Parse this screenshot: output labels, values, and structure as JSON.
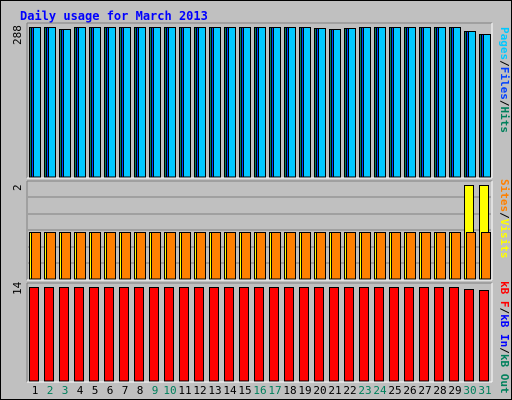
{
  "title": "Daily usage for March 2013",
  "colors": {
    "hits": "#00805c",
    "files": "#0040ff",
    "pages": "#00c8ff",
    "visits": "#ffff00",
    "sites": "#ff8000",
    "kb_in": "#0000ff",
    "kb_out": "#00805c",
    "kb_f": "#ff0000",
    "weekend_label": "#00805c",
    "weekday_label": "#000000"
  },
  "legend": {
    "top": [
      "Pages",
      "Files",
      "Hits"
    ],
    "middle": [
      "Sites",
      "Visits"
    ],
    "bottom": [
      "kB F",
      "kB In",
      "kB Out"
    ]
  },
  "chart_data": [
    {
      "type": "bar",
      "panel": "top",
      "ymax_label": "288",
      "ylim": [
        0,
        288
      ],
      "categories": [
        "1",
        "2",
        "3",
        "4",
        "5",
        "6",
        "7",
        "8",
        "9",
        "10",
        "11",
        "12",
        "13",
        "14",
        "15",
        "16",
        "17",
        "18",
        "19",
        "20",
        "21",
        "22",
        "23",
        "24",
        "25",
        "26",
        "27",
        "28",
        "29",
        "30",
        "31"
      ],
      "weekend_days": [
        "2",
        "3",
        "9",
        "10",
        "16",
        "17",
        "23",
        "24",
        "30",
        "31"
      ],
      "series": [
        {
          "name": "Hits",
          "values": [
            288,
            288,
            285,
            288,
            288,
            288,
            288,
            288,
            288,
            288,
            288,
            288,
            288,
            288,
            288,
            288,
            288,
            288,
            288,
            286,
            285,
            286,
            288,
            288,
            288,
            288,
            288,
            288,
            288,
            281,
            275
          ]
        },
        {
          "name": "Files",
          "values": [
            288,
            288,
            285,
            288,
            288,
            288,
            288,
            288,
            288,
            288,
            288,
            288,
            288,
            288,
            288,
            288,
            288,
            288,
            288,
            286,
            285,
            286,
            288,
            288,
            288,
            288,
            288,
            288,
            288,
            281,
            275
          ]
        },
        {
          "name": "Pages",
          "values": [
            288,
            288,
            285,
            288,
            288,
            288,
            288,
            288,
            288,
            288,
            288,
            288,
            288,
            288,
            288,
            288,
            288,
            288,
            288,
            286,
            285,
            286,
            288,
            288,
            288,
            288,
            288,
            288,
            288,
            281,
            275
          ]
        }
      ]
    },
    {
      "type": "bar",
      "panel": "middle",
      "ymax_label": "2",
      "ylim": [
        0,
        2
      ],
      "categories": [
        "1",
        "2",
        "3",
        "4",
        "5",
        "6",
        "7",
        "8",
        "9",
        "10",
        "11",
        "12",
        "13",
        "14",
        "15",
        "16",
        "17",
        "18",
        "19",
        "20",
        "21",
        "22",
        "23",
        "24",
        "25",
        "26",
        "27",
        "28",
        "29",
        "30",
        "31"
      ],
      "series": [
        {
          "name": "Visits",
          "values": [
            1,
            1,
            1,
            1,
            1,
            1,
            1,
            1,
            1,
            1,
            1,
            1,
            1,
            1,
            1,
            1,
            1,
            1,
            1,
            1,
            1,
            1,
            1,
            1,
            1,
            1,
            1,
            1,
            1,
            2,
            2
          ]
        },
        {
          "name": "Sites",
          "values": [
            1,
            1,
            1,
            1,
            1,
            1,
            1,
            1,
            1,
            1,
            1,
            1,
            1,
            1,
            1,
            1,
            1,
            1,
            1,
            1,
            1,
            1,
            1,
            1,
            1,
            1,
            1,
            1,
            1,
            1,
            1
          ]
        }
      ]
    },
    {
      "type": "bar",
      "panel": "bottom",
      "ymax_label": "14",
      "ylim": [
        0,
        14
      ],
      "categories": [
        "1",
        "2",
        "3",
        "4",
        "5",
        "6",
        "7",
        "8",
        "9",
        "10",
        "11",
        "12",
        "13",
        "14",
        "15",
        "16",
        "17",
        "18",
        "19",
        "20",
        "21",
        "22",
        "23",
        "24",
        "25",
        "26",
        "27",
        "28",
        "29",
        "30",
        "31"
      ],
      "series": [
        {
          "name": "kB F",
          "values": [
            14,
            14,
            14,
            14,
            14,
            14,
            14,
            14,
            14,
            14,
            14,
            14,
            14,
            14,
            14,
            14,
            14,
            14,
            14,
            14,
            14,
            14,
            14,
            14,
            14,
            14,
            14,
            14,
            14,
            13.7,
            13.5
          ]
        }
      ]
    }
  ]
}
